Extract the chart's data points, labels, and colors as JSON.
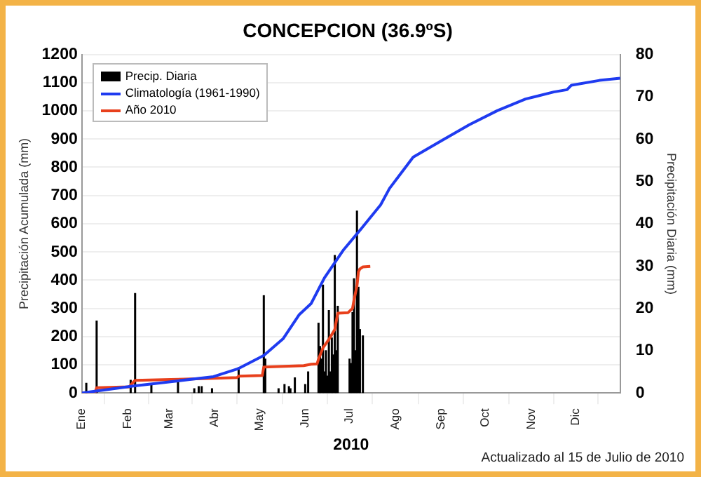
{
  "chart_data": {
    "type": "line",
    "title": "CONCEPCION (36.9ºS)",
    "xlabel": "2010",
    "ylabel": "Precipitación Acumulada (mm)",
    "y2label": "Precipitación Diaria (mm)",
    "annotations": [
      "Actualizado al 15 de Julio de 2010"
    ],
    "xlim": [
      "2010-01-01",
      "2010-12-31"
    ],
    "xticks": [
      {
        "value": "2010-01-01",
        "label": "Ene"
      },
      {
        "value": "2010-02-01",
        "label": "Feb"
      },
      {
        "value": "2010-03-01",
        "label": "Mar"
      },
      {
        "value": "2010-04-01",
        "label": "Abr"
      },
      {
        "value": "2010-05-01",
        "label": "May"
      },
      {
        "value": "2010-06-01",
        "label": "Jun"
      },
      {
        "value": "2010-07-01",
        "label": "Jul"
      },
      {
        "value": "2010-08-01",
        "label": "Ago"
      },
      {
        "value": "2010-09-01",
        "label": "Sep"
      },
      {
        "value": "2010-10-01",
        "label": "Oct"
      },
      {
        "value": "2010-11-01",
        "label": "Nov"
      },
      {
        "value": "2010-12-01",
        "label": "Dic"
      }
    ],
    "ylim": [
      0,
      1200
    ],
    "yticks": [
      0,
      100,
      200,
      300,
      400,
      500,
      600,
      700,
      800,
      900,
      1000,
      1100,
      1200
    ],
    "y2lim": [
      0,
      80
    ],
    "y2ticks": [
      0,
      10,
      20,
      30,
      40,
      50,
      60,
      70,
      80
    ],
    "grid": "y",
    "legend": "top left",
    "series": [
      {
        "name": "Precip. Diaria",
        "type": "bar",
        "axis": "y2",
        "color": "#000000",
        "x": [
          "2010-01-04",
          "2010-01-11",
          "2010-02-03",
          "2010-02-06",
          "2010-02-17",
          "2010-03-07",
          "2010-03-18",
          "2010-03-21",
          "2010-03-23",
          "2010-03-30",
          "2010-04-17",
          "2010-05-04",
          "2010-05-05",
          "2010-05-14",
          "2010-05-18",
          "2010-05-21",
          "2010-05-22",
          "2010-05-25",
          "2010-06-01",
          "2010-06-03",
          "2010-06-10",
          "2010-06-11",
          "2010-06-12",
          "2010-06-13",
          "2010-06-14",
          "2010-06-15",
          "2010-06-16",
          "2010-06-17",
          "2010-06-18",
          "2010-06-19",
          "2010-06-20",
          "2010-06-21",
          "2010-06-22",
          "2010-06-23",
          "2010-07-01",
          "2010-07-02",
          "2010-07-03",
          "2010-07-04",
          "2010-07-05",
          "2010-07-06",
          "2010-07-07",
          "2010-07-08",
          "2010-07-10"
        ],
        "values": [
          2.3,
          17,
          3,
          23.5,
          2,
          2.5,
          1,
          1.5,
          1.5,
          1,
          6,
          23,
          8,
          1,
          2,
          1.5,
          1,
          3.6,
          2,
          5,
          16.5,
          11,
          8,
          25.5,
          5,
          10,
          4,
          19.5,
          5,
          13,
          9,
          32.5,
          10,
          20.5,
          8,
          7,
          19,
          27,
          10,
          43,
          25,
          15,
          13.5
        ]
      },
      {
        "name": "Climatología (1961-1990)",
        "color": "#1f3bf0",
        "x": [
          "2010-01-01",
          "2010-02-05",
          "2010-03-05",
          "2010-03-31",
          "2010-04-17",
          "2010-05-04",
          "2010-05-17",
          "2010-05-28",
          "2010-06-05",
          "2010-06-14",
          "2010-06-27",
          "2010-07-09",
          "2010-07-22",
          "2010-07-28",
          "2010-08-13",
          "2010-09-01",
          "2010-09-20",
          "2010-10-09",
          "2010-10-28",
          "2010-11-16",
          "2010-11-25",
          "2010-11-28",
          "2010-12-17",
          "2010-12-31"
        ],
        "values": [
          0,
          25,
          42,
          58,
          87,
          133,
          192,
          278,
          317,
          408,
          508,
          583,
          667,
          725,
          836,
          894,
          951,
          1001,
          1042,
          1067,
          1075,
          1091,
          1108,
          1116
        ]
      },
      {
        "name": "Año 2010",
        "color": "#e8401c",
        "x": [
          "2010-01-01",
          "2010-01-10",
          "2010-01-11",
          "2010-02-02",
          "2010-02-06",
          "2010-03-02",
          "2010-04-01",
          "2010-04-16",
          "2010-04-17",
          "2010-05-03",
          "2010-05-04",
          "2010-05-31",
          "2010-06-05",
          "2010-06-09",
          "2010-06-10",
          "2010-06-13",
          "2010-06-17",
          "2010-06-21",
          "2010-06-23",
          "2010-06-30",
          "2010-07-03",
          "2010-07-04",
          "2010-07-06",
          "2010-07-07",
          "2010-07-08",
          "2010-07-10",
          "2010-07-15"
        ],
        "values": [
          0,
          2,
          19,
          22,
          45,
          48,
          52,
          55,
          60,
          62,
          92,
          97,
          102,
          103,
          120,
          160,
          190,
          225,
          283,
          285,
          300,
          330,
          380,
          430,
          440,
          447,
          449
        ]
      }
    ]
  }
}
